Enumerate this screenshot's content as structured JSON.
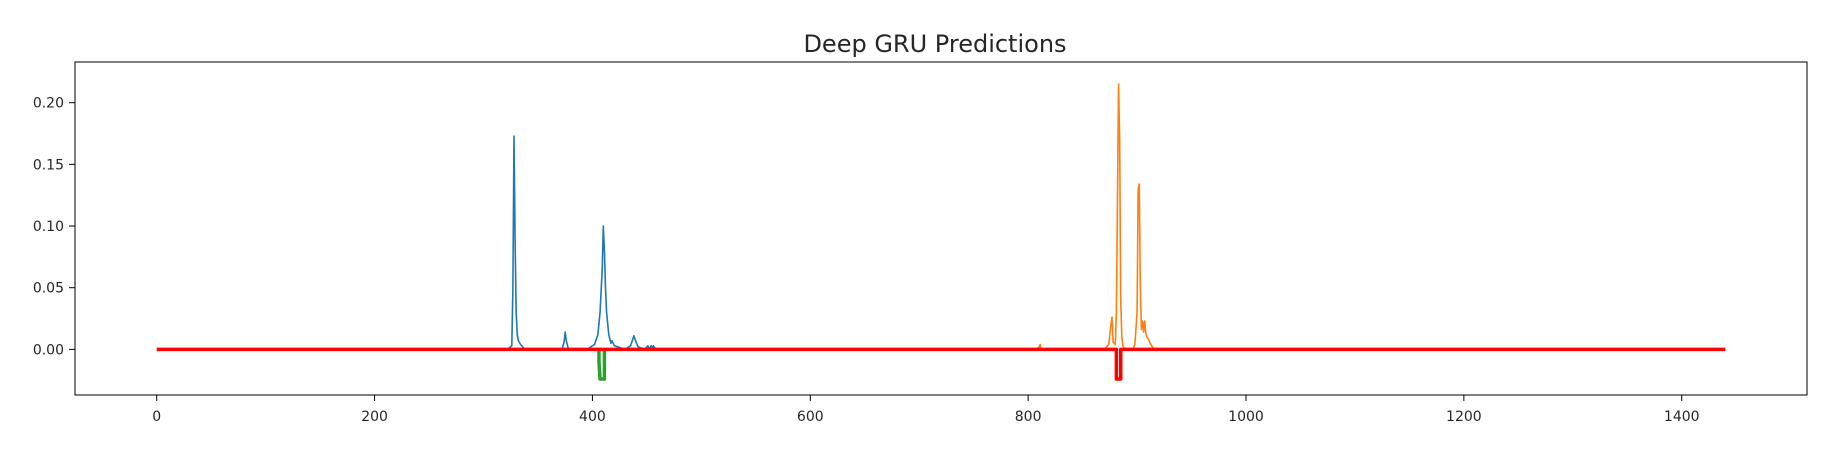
{
  "chart_data": {
    "type": "line",
    "title": "Deep GRU Predictions",
    "xlabel": "",
    "ylabel": "",
    "xlim": [
      -75,
      1515
    ],
    "ylim": [
      -0.037,
      0.233
    ],
    "xticks": [
      0,
      200,
      400,
      600,
      800,
      1000,
      1200,
      1400
    ],
    "xtick_labels": [
      "0",
      "200",
      "400",
      "600",
      "800",
      "1000",
      "1200",
      "1400"
    ],
    "yticks": [
      0.0,
      0.05,
      0.1,
      0.15,
      0.2
    ],
    "ytick_labels": [
      "0.00",
      "0.05",
      "0.10",
      "0.15",
      "0.20"
    ],
    "grid": false,
    "series": [
      {
        "color": "#1f77b4",
        "width": 1.6,
        "x": [
          322,
          326,
          327,
          328,
          329,
          330,
          331,
          332,
          334,
          336,
          338,
          372,
          374,
          375,
          376,
          378,
          395,
          402,
          405,
          407,
          409,
          410,
          411,
          412,
          413,
          415,
          417,
          418,
          420,
          430,
          435,
          437,
          438,
          440,
          442,
          448,
          451,
          452,
          454,
          455,
          456,
          458
        ],
        "y": [
          0.0,
          0.003,
          0.05,
          0.173,
          0.09,
          0.03,
          0.012,
          0.007,
          0.004,
          0.002,
          0.0,
          0.0,
          0.006,
          0.014,
          0.007,
          0.0,
          0.0,
          0.004,
          0.012,
          0.03,
          0.065,
          0.1,
          0.08,
          0.05,
          0.03,
          0.012,
          0.005,
          0.007,
          0.003,
          0.0,
          0.003,
          0.008,
          0.011,
          0.006,
          0.002,
          0.0,
          0.003,
          0.0,
          0.003,
          0.0,
          0.003,
          0.0
        ]
      },
      {
        "color": "#ff7f0e",
        "width": 1.6,
        "x": [
          808,
          810,
          811,
          812,
          870,
          874,
          876,
          877,
          878,
          880,
          881,
          882,
          883,
          884,
          885,
          886,
          887,
          888,
          889,
          896,
          898,
          900,
          901,
          902,
          903,
          904,
          905,
          906,
          907,
          908,
          909,
          910,
          912,
          914,
          916
        ],
        "y": [
          0.0,
          0.002,
          0.004,
          0.0,
          0.0,
          0.004,
          0.02,
          0.026,
          0.006,
          0.004,
          0.03,
          0.12,
          0.215,
          0.17,
          0.04,
          0.01,
          0.003,
          0.001,
          0.0,
          0.0,
          0.004,
          0.03,
          0.13,
          0.134,
          0.05,
          0.016,
          0.023,
          0.014,
          0.023,
          0.013,
          0.01,
          0.009,
          0.005,
          0.002,
          0.0
        ]
      },
      {
        "color": "#2ca02c",
        "width": 3.5,
        "x": [
          406,
          406,
          407,
          408,
          409,
          410,
          411,
          411
        ],
        "y": [
          0.0,
          -0.01,
          -0.024,
          -0.024,
          -0.024,
          -0.024,
          -0.024,
          0.0
        ]
      },
      {
        "color": "#ff0000",
        "width": 3.5,
        "x": [
          0,
          881,
          881,
          882,
          883,
          884,
          885,
          885,
          1440
        ],
        "y": [
          0.0,
          0.0,
          -0.024,
          -0.024,
          -0.024,
          -0.024,
          -0.024,
          0.0,
          0.0
        ]
      }
    ]
  }
}
